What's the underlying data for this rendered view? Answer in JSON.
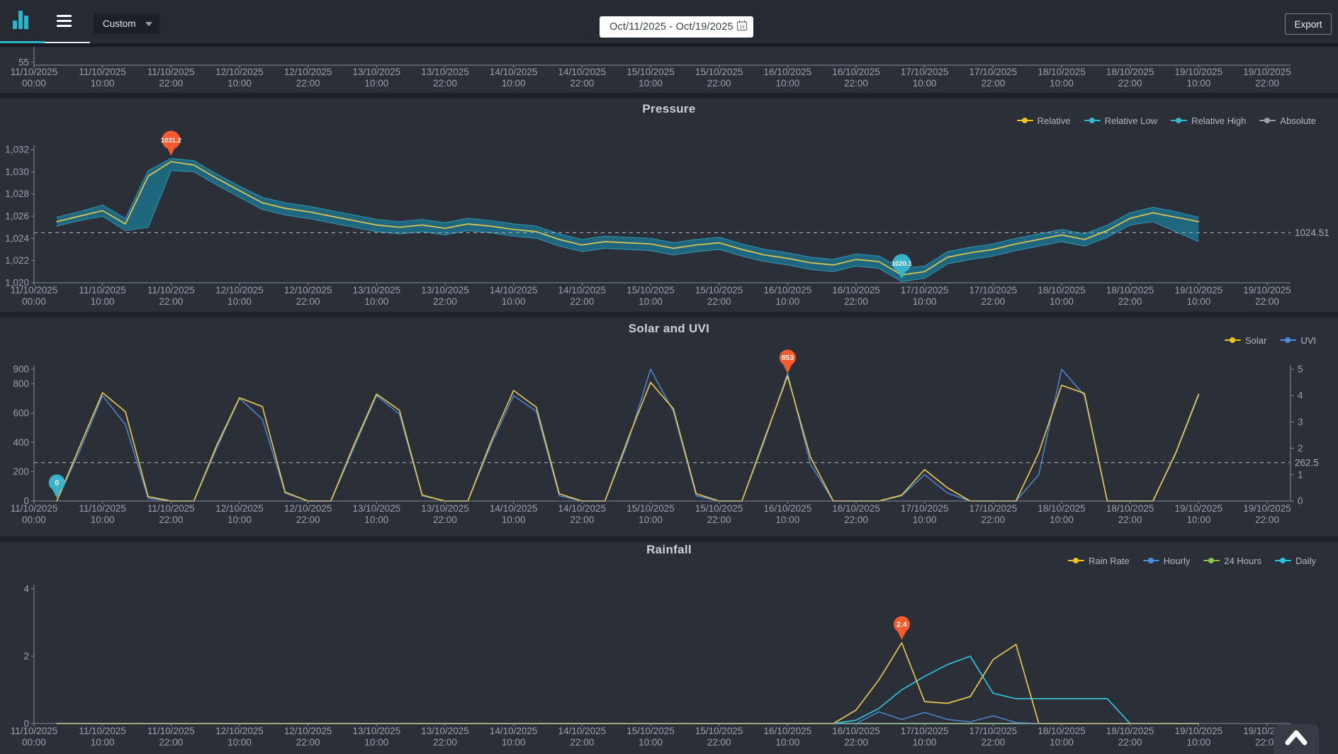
{
  "topbar": {
    "logo_icon": "bar-chart-icon",
    "menu_icon": "hamburger-icon",
    "range_select_value": "Custom",
    "range_select_caret": "chevron-down-icon",
    "date_range_value": "Oct/11/2025 - Oct/19/2025",
    "date_picker_icon": "calendar-icon",
    "calendar_icon_text": "19",
    "export_label": "Export"
  },
  "scroll_top_icon": "chevron-up-icon",
  "colors": {
    "accent_cyan": "#2ab6c9",
    "callout_max": "#f85a2d",
    "callout_min": "#38b3c9",
    "band_fill": "#1e6a82",
    "yellow_series": "#e3c64f",
    "blue_series": "#4d87d3",
    "green_series": "#8fc573",
    "cyan_series": "#2cc5d8",
    "gray_series": "#9aa0a6"
  },
  "chart_data": [
    {
      "type": "line",
      "title": "",
      "note": "only the bottom x-axis of this chart is visible at the top edge of the screen",
      "y_ticks": [
        [
          55,
          "55"
        ]
      ],
      "x_tick_labels": [
        "11/10/2025 00:00",
        "11/10/2025 10:00",
        "11/10/2025 22:00",
        "12/10/2025 10:00",
        "12/10/2025 22:00",
        "13/10/2025 10:00",
        "13/10/2025 22:00",
        "14/10/2025 10:00",
        "14/10/2025 22:00",
        "15/10/2025 10:00",
        "15/10/2025 22:00",
        "16/10/2025 10:00",
        "16/10/2025 22:00",
        "17/10/2025 10:00",
        "17/10/2025 22:00",
        "18/10/2025 10:00",
        "18/10/2025 22:00",
        "19/10/2025 10:00",
        "19/10/2025 22:00"
      ]
    },
    {
      "type": "line",
      "title": "Pressure",
      "legend": [
        {
          "label": "Relative",
          "color": "#f0c41b"
        },
        {
          "label": "Relative Low",
          "color": "#35b7cb"
        },
        {
          "label": "Relative High",
          "color": "#35b7cb"
        },
        {
          "label": "Absolute",
          "color": "#9aa0a6"
        }
      ],
      "ylim": [
        1020,
        1032
      ],
      "y_ticks": [
        [
          1020,
          "1,020"
        ],
        [
          1022,
          "1,022"
        ],
        [
          1024,
          "1,024"
        ],
        [
          1026,
          "1,026"
        ],
        [
          1028,
          "1,028"
        ],
        [
          1030,
          "1,030"
        ],
        [
          1032,
          "1,032"
        ]
      ],
      "average_line": {
        "value": 1024.51,
        "label": "1024.51"
      },
      "max_callout": {
        "label": "1031.2",
        "value": 1031.2,
        "x_tick": 2,
        "color": "#f85a2d"
      },
      "min_callout": {
        "label": "1020.1",
        "value": 1020.1,
        "x_tick": 12.667,
        "color": "#38b3c9"
      },
      "band_fill": "#1e6a82",
      "x_sampling": "values sampled every 1/3 tick (~4 h); index 0 = 11/10/2025 00:00; series data starts ~03:00 and ends 19/10/2025 10:00",
      "x_tick_labels": [
        "11/10/2025 00:00",
        "11/10/2025 10:00",
        "11/10/2025 22:00",
        "12/10/2025 10:00",
        "12/10/2025 22:00",
        "13/10/2025 10:00",
        "13/10/2025 22:00",
        "14/10/2025 10:00",
        "14/10/2025 22:00",
        "15/10/2025 10:00",
        "15/10/2025 22:00",
        "16/10/2025 10:00",
        "16/10/2025 22:00",
        "17/10/2025 10:00",
        "17/10/2025 22:00",
        "18/10/2025 10:00",
        "18/10/2025 22:00",
        "19/10/2025 10:00",
        "19/10/2025 22:00"
      ],
      "series": [
        {
          "name": "Relative",
          "color": "#e3c64f",
          "values": [
            null,
            1025.5,
            1026.0,
            1026.5,
            1025.3,
            1029.6,
            1030.9,
            1030.6,
            1029.4,
            1028.3,
            1027.2,
            1026.7,
            1026.4,
            1026.0,
            1025.6,
            1025.2,
            1025.0,
            1025.2,
            1024.9,
            1025.3,
            1025.1,
            1024.8,
            1024.6,
            1023.9,
            1023.4,
            1023.7,
            1023.6,
            1023.5,
            1023.1,
            1023.4,
            1023.6,
            1023.0,
            1022.5,
            1022.2,
            1021.8,
            1021.6,
            1022.1,
            1021.9,
            1020.7,
            1021.0,
            1022.3,
            1022.7,
            1023.0,
            1023.5,
            1023.9,
            1024.3,
            1023.9,
            1024.7,
            1025.8,
            1026.3,
            1025.9,
            1025.5
          ]
        },
        {
          "name": "Relative Low",
          "color": "#2e8ca6",
          "values": [
            null,
            1025.1,
            1025.6,
            1026.0,
            1024.7,
            1025.0,
            1030.1,
            1030.0,
            1028.8,
            1027.7,
            1026.6,
            1026.1,
            1025.8,
            1025.4,
            1025.0,
            1024.6,
            1024.4,
            1024.6,
            1024.3,
            1024.7,
            1024.5,
            1024.2,
            1024.0,
            1023.3,
            1022.8,
            1023.1,
            1023.0,
            1022.9,
            1022.5,
            1022.8,
            1023.0,
            1022.4,
            1021.9,
            1021.6,
            1021.2,
            1021.0,
            1021.5,
            1021.3,
            1020.1,
            1020.4,
            1021.7,
            1022.1,
            1022.4,
            1022.9,
            1023.3,
            1023.7,
            1023.3,
            1024.1,
            1025.2,
            1025.5,
            1024.6,
            1023.7
          ]
        },
        {
          "name": "Relative High",
          "color": "#2e8ca6",
          "values": [
            null,
            1025.9,
            1026.4,
            1027.0,
            1025.8,
            1030.1,
            1031.2,
            1031.0,
            1029.8,
            1028.7,
            1027.7,
            1027.2,
            1026.9,
            1026.5,
            1026.1,
            1025.7,
            1025.5,
            1025.7,
            1025.4,
            1025.8,
            1025.6,
            1025.3,
            1025.1,
            1024.4,
            1023.9,
            1024.2,
            1024.1,
            1024.0,
            1023.6,
            1023.9,
            1024.1,
            1023.5,
            1023.0,
            1022.7,
            1022.3,
            1022.1,
            1022.6,
            1022.4,
            1021.3,
            1021.5,
            1022.8,
            1023.2,
            1023.5,
            1024.0,
            1024.4,
            1024.8,
            1024.4,
            1025.2,
            1026.3,
            1026.8,
            1026.4,
            1025.9
          ]
        },
        {
          "name": "Absolute",
          "color": "#9aa0a6",
          "values": [],
          "note": "listed in legend but not visibly distinct in screenshot"
        }
      ]
    },
    {
      "type": "line",
      "title": "Solar and UVI",
      "legend": [
        {
          "label": "Solar",
          "color": "#f0c41b"
        },
        {
          "label": "UVI",
          "color": "#4a90e2"
        }
      ],
      "left_ylim": [
        0,
        900
      ],
      "y_ticks_left": [
        [
          0,
          "0"
        ],
        [
          200,
          "200"
        ],
        [
          400,
          "400"
        ],
        [
          600,
          "600"
        ],
        [
          800,
          "800"
        ],
        [
          900,
          "900"
        ]
      ],
      "right_ylim": [
        0,
        5
      ],
      "y_ticks_right": [
        [
          0,
          "0"
        ],
        [
          1,
          "1"
        ],
        [
          2,
          "2"
        ],
        [
          3,
          "3"
        ],
        [
          4,
          "4"
        ],
        [
          5,
          "5"
        ]
      ],
      "average_line": {
        "value": 262.5,
        "label": "262.5"
      },
      "max_callout": {
        "label": "853",
        "value": 853,
        "x_tick": 11,
        "color": "#f85a2d"
      },
      "min_callout": {
        "label": "0",
        "value": 0,
        "x_tick": 0.333,
        "color": "#38b3c9"
      },
      "x_sampling": "values sampled every 1/3 tick (~4 h); index 0 = 11/10/2025 00:00",
      "x_tick_labels": [
        "11/10/2025 00:00",
        "11/10/2025 10:00",
        "11/10/2025 22:00",
        "12/10/2025 10:00",
        "12/10/2025 22:00",
        "13/10/2025 10:00",
        "13/10/2025 22:00",
        "14/10/2025 10:00",
        "14/10/2025 22:00",
        "15/10/2025 10:00",
        "15/10/2025 22:00",
        "16/10/2025 10:00",
        "16/10/2025 22:00",
        "17/10/2025 10:00",
        "17/10/2025 22:00",
        "18/10/2025 10:00",
        "18/10/2025 22:00",
        "19/10/2025 10:00",
        "19/10/2025 22:00"
      ],
      "series": [
        {
          "name": "Solar",
          "axis": "left",
          "color": "#e3c64f",
          "values": [
            null,
            0,
            370,
            740,
            610,
            30,
            0,
            0,
            380,
            705,
            645,
            60,
            0,
            0,
            380,
            730,
            620,
            40,
            0,
            0,
            400,
            755,
            640,
            50,
            0,
            0,
            420,
            810,
            630,
            50,
            0,
            0,
            430,
            853,
            300,
            0,
            0,
            0,
            40,
            215,
            90,
            0,
            0,
            0,
            330,
            790,
            735,
            0,
            0,
            0,
            330,
            730
          ]
        },
        {
          "name": "UVI",
          "axis": "right",
          "color": "#4d87d3",
          "values": [
            null,
            0,
            1.9,
            4,
            2.9,
            0.1,
            0,
            0,
            2,
            3.9,
            3.1,
            0.3,
            0,
            0,
            2,
            4,
            3.3,
            0.2,
            0,
            0,
            2.1,
            4,
            3.4,
            0.2,
            0,
            0,
            2.2,
            5,
            3.4,
            0.2,
            0,
            0,
            2.3,
            4.85,
            1.4,
            0,
            0,
            0,
            0.2,
            1,
            0.3,
            0,
            0,
            0,
            1,
            5,
            4,
            0,
            0,
            0,
            1.8,
            4
          ]
        }
      ]
    },
    {
      "type": "line",
      "title": "Rainfall",
      "legend": [
        {
          "label": "Rain Rate",
          "color": "#f0c41b"
        },
        {
          "label": "Hourly",
          "color": "#4a90e2"
        },
        {
          "label": "24 Hours",
          "color": "#8bc34a"
        },
        {
          "label": "Daily",
          "color": "#26c6da"
        }
      ],
      "ylim": [
        0,
        4
      ],
      "y_ticks": [
        [
          0,
          "0"
        ],
        [
          2,
          "2"
        ],
        [
          4,
          "4"
        ]
      ],
      "max_callout": {
        "label": "2.4",
        "value": 2.4,
        "x_tick": 12.667,
        "color": "#f85a2d"
      },
      "x_sampling": "values sampled every 1/3 tick (~4 h); index 0 = 11/10/2025 00:00",
      "x_tick_labels": [
        "11/10/2025 00:00",
        "11/10/2025 10:00",
        "11/10/2025 22:00",
        "12/10/2025 10:00",
        "12/10/2025 22:00",
        "13/10/2025 10:00",
        "13/10/2025 22:00",
        "14/10/2025 10:00",
        "14/10/2025 22:00",
        "15/10/2025 10:00",
        "15/10/2025 22:00",
        "16/10/2025 10:00",
        "16/10/2025 22:00",
        "17/10/2025 10:00",
        "17/10/2025 22:00",
        "18/10/2025 10:00",
        "18/10/2025 22:00",
        "19/10/2025 10:00",
        "19/10/2025 22:00"
      ],
      "series": [
        {
          "name": "Rain Rate",
          "color": "#e3c64f",
          "values": [
            null,
            0,
            0,
            0,
            0,
            0,
            0,
            0,
            0,
            0,
            0,
            0,
            0,
            0,
            0,
            0,
            0,
            0,
            0,
            0,
            0,
            0,
            0,
            0,
            0,
            0,
            0,
            0,
            0,
            0,
            0,
            0,
            0,
            0,
            0,
            0,
            0.4,
            1.3,
            2.4,
            0.65,
            0.6,
            0.8,
            1.9,
            2.35,
            0,
            0,
            0,
            0,
            0,
            0,
            0,
            0
          ]
        },
        {
          "name": "Hourly",
          "color": "#4d87d3",
          "values": [
            null,
            0,
            0,
            0,
            0,
            0,
            0,
            0,
            0,
            0,
            0,
            0,
            0,
            0,
            0,
            0,
            0,
            0,
            0,
            0,
            0,
            0,
            0,
            0,
            0,
            0,
            0,
            0,
            0,
            0,
            0,
            0,
            0,
            0,
            0,
            0,
            0,
            0.35,
            0.12,
            0.33,
            0.12,
            0.05,
            0.23,
            0.03,
            0,
            0,
            0,
            0,
            0,
            0,
            0,
            0
          ]
        },
        {
          "name": "24 Hours",
          "color": "#8fc573",
          "values": [
            null,
            0,
            0,
            0,
            0,
            0,
            0,
            0,
            0,
            0,
            0,
            0,
            0,
            0,
            0,
            0,
            0,
            0,
            0,
            0,
            0,
            0,
            0,
            0,
            0,
            0,
            0,
            0,
            0,
            0,
            0,
            0,
            0,
            0,
            0,
            0,
            0,
            0,
            0,
            0,
            0,
            0,
            0,
            0,
            0,
            0,
            0,
            0,
            0,
            0,
            0,
            0
          ]
        },
        {
          "name": "Daily",
          "color": "#2cc5d8",
          "values": [
            null,
            0,
            0,
            0,
            0,
            0,
            0,
            0,
            0,
            0,
            0,
            0,
            0,
            0,
            0,
            0,
            0,
            0,
            0,
            0,
            0,
            0,
            0,
            0,
            0,
            0,
            0,
            0,
            0,
            0,
            0,
            0,
            0,
            0,
            0,
            0,
            0.1,
            0.45,
            1.0,
            1.4,
            1.75,
            2.0,
            0.9,
            0.74,
            0.74,
            0.74,
            0.74,
            0.74,
            0,
            0,
            0,
            0
          ]
        }
      ]
    }
  ]
}
